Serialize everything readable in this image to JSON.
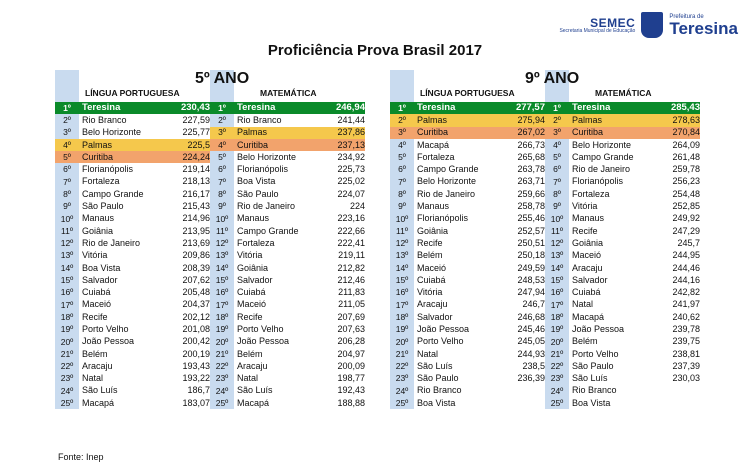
{
  "header": {
    "semec": "SEMEC",
    "semec_sub": "Secretaria Municipal de Educação",
    "pref_small": "Prefeitura de",
    "pref_big": "Teresina"
  },
  "title": "Proficiência Prova Brasil 2017",
  "sections": [
    {
      "grade": "5º ANO",
      "lp_label": "LÍNGUA PORTUGUESA",
      "mt_label": "MATEMÁTICA",
      "lp": [
        [
          "1º",
          "Teresina",
          "230,43",
          "green"
        ],
        [
          "2º",
          "Rio Branco",
          "227,59",
          ""
        ],
        [
          "3º",
          "Belo Horizonte",
          "225,77",
          ""
        ],
        [
          "4º",
          "Palmas",
          "225,5",
          "yellow"
        ],
        [
          "5º",
          "Curitiba",
          "224,24",
          "orange"
        ],
        [
          "6º",
          "Florianópolis",
          "219,14",
          ""
        ],
        [
          "7º",
          "Fortaleza",
          "218,13",
          ""
        ],
        [
          "8º",
          "Campo Grande",
          "216,17",
          ""
        ],
        [
          "9º",
          "São Paulo",
          "215,43",
          ""
        ],
        [
          "10º",
          "Manaus",
          "214,96",
          ""
        ],
        [
          "11º",
          "Goiânia",
          "213,95",
          ""
        ],
        [
          "12º",
          "Rio de Janeiro",
          "213,69",
          ""
        ],
        [
          "13º",
          "Vitória",
          "209,86",
          ""
        ],
        [
          "14º",
          "Boa Vista",
          "208,39",
          ""
        ],
        [
          "15º",
          "Salvador",
          "207,62",
          ""
        ],
        [
          "16º",
          "Cuiabá",
          "205,48",
          ""
        ],
        [
          "17º",
          "Maceió",
          "204,37",
          ""
        ],
        [
          "18º",
          "Recife",
          "202,12",
          ""
        ],
        [
          "19º",
          "Porto Velho",
          "201,08",
          ""
        ],
        [
          "20º",
          "João Pessoa",
          "200,42",
          ""
        ],
        [
          "21º",
          "Belém",
          "200,19",
          ""
        ],
        [
          "22º",
          "Aracaju",
          "193,43",
          ""
        ],
        [
          "23º",
          "Natal",
          "193,22",
          ""
        ],
        [
          "24º",
          "São Luís",
          "186,7",
          ""
        ],
        [
          "25º",
          "Macapá",
          "183,07",
          ""
        ]
      ],
      "mt": [
        [
          "1º",
          "Teresina",
          "246,94",
          "green"
        ],
        [
          "2º",
          "Rio Branco",
          "241,44",
          ""
        ],
        [
          "3º",
          "Palmas",
          "237,86",
          "yellow"
        ],
        [
          "4º",
          "Curitiba",
          "237,13",
          "orange"
        ],
        [
          "5º",
          "Belo Horizonte",
          "234,92",
          ""
        ],
        [
          "6º",
          "Florianópolis",
          "225,73",
          ""
        ],
        [
          "7º",
          "Boa Vista",
          "225,02",
          ""
        ],
        [
          "8º",
          "São Paulo",
          "224,07",
          ""
        ],
        [
          "9º",
          "Rio de Janeiro",
          "224",
          ""
        ],
        [
          "10º",
          "Manaus",
          "223,16",
          ""
        ],
        [
          "11º",
          "Campo Grande",
          "222,66",
          ""
        ],
        [
          "12º",
          "Fortaleza",
          "222,41",
          ""
        ],
        [
          "13º",
          "Vitória",
          "219,11",
          ""
        ],
        [
          "14º",
          "Goiânia",
          "212,82",
          ""
        ],
        [
          "15º",
          "Salvador",
          "212,46",
          ""
        ],
        [
          "16º",
          "Cuiabá",
          "211,83",
          ""
        ],
        [
          "17º",
          "Maceió",
          "211,05",
          ""
        ],
        [
          "18º",
          "Recife",
          "207,69",
          ""
        ],
        [
          "19º",
          "Porto Velho",
          "207,63",
          ""
        ],
        [
          "20º",
          "João Pessoa",
          "206,28",
          ""
        ],
        [
          "21º",
          "Belém",
          "204,97",
          ""
        ],
        [
          "22º",
          "Aracaju",
          "200,09",
          ""
        ],
        [
          "23º",
          "Natal",
          "198,77",
          ""
        ],
        [
          "24º",
          "São Luís",
          "192,43",
          ""
        ],
        [
          "25º",
          "Macapá",
          "188,88",
          ""
        ]
      ]
    },
    {
      "grade": "9º ANO",
      "lp_label": "LÍNGUA PORTUGUESA",
      "mt_label": "MATEMÁTICA",
      "lp": [
        [
          "1º",
          "Teresina",
          "277,57",
          "green"
        ],
        [
          "2º",
          "Palmas",
          "275,94",
          "yellow"
        ],
        [
          "3º",
          "Curitiba",
          "267,02",
          "orange"
        ],
        [
          "4º",
          "Macapá",
          "266,73",
          ""
        ],
        [
          "5º",
          "Fortaleza",
          "265,68",
          ""
        ],
        [
          "6º",
          "Campo Grande",
          "263,78",
          ""
        ],
        [
          "7º",
          "Belo Horizonte",
          "263,71",
          ""
        ],
        [
          "8º",
          "Rio de Janeiro",
          "259,66",
          ""
        ],
        [
          "9º",
          "Manaus",
          "258,78",
          ""
        ],
        [
          "10º",
          "Florianópolis",
          "255,46",
          ""
        ],
        [
          "11º",
          "Goiânia",
          "252,57",
          ""
        ],
        [
          "12º",
          "Recife",
          "250,51",
          ""
        ],
        [
          "13º",
          "Belém",
          "250,18",
          ""
        ],
        [
          "14º",
          "Maceió",
          "249,59",
          ""
        ],
        [
          "15º",
          "Cuiabá",
          "248,53",
          ""
        ],
        [
          "16º",
          "Vitória",
          "247,94",
          ""
        ],
        [
          "17º",
          "Aracaju",
          "246,7",
          ""
        ],
        [
          "18º",
          "Salvador",
          "246,68",
          ""
        ],
        [
          "19º",
          "João Pessoa",
          "245,46",
          ""
        ],
        [
          "20º",
          "Porto Velho",
          "245,05",
          ""
        ],
        [
          "21º",
          "Natal",
          "244,93",
          ""
        ],
        [
          "22º",
          "São Luís",
          "238,5",
          ""
        ],
        [
          "23º",
          "São Paulo",
          "236,39",
          ""
        ],
        [
          "24º",
          "Rio Branco",
          "",
          ""
        ],
        [
          "25º",
          "Boa Vista",
          "",
          ""
        ]
      ],
      "mt": [
        [
          "1º",
          "Teresina",
          "285,43",
          "green"
        ],
        [
          "2º",
          "Palmas",
          "278,63",
          "yellow"
        ],
        [
          "3º",
          "Curitiba",
          "270,84",
          "orange"
        ],
        [
          "4º",
          "Belo Horizonte",
          "264,09",
          ""
        ],
        [
          "5º",
          "Campo Grande",
          "261,48",
          ""
        ],
        [
          "6º",
          "Rio de Janeiro",
          "259,78",
          ""
        ],
        [
          "7º",
          "Florianópolis",
          "256,23",
          ""
        ],
        [
          "8º",
          "Fortaleza",
          "254,48",
          ""
        ],
        [
          "9º",
          "Vitória",
          "252,85",
          ""
        ],
        [
          "10º",
          "Manaus",
          "249,92",
          ""
        ],
        [
          "11º",
          "Recife",
          "247,29",
          ""
        ],
        [
          "12º",
          "Goiânia",
          "245,7",
          ""
        ],
        [
          "13º",
          "Maceió",
          "244,95",
          ""
        ],
        [
          "14º",
          "Aracaju",
          "244,46",
          ""
        ],
        [
          "15º",
          "Salvador",
          "244,16",
          ""
        ],
        [
          "16º",
          "Cuiabá",
          "242,82",
          ""
        ],
        [
          "17º",
          "Natal",
          "241,97",
          ""
        ],
        [
          "18º",
          "Macapá",
          "240,62",
          ""
        ],
        [
          "19º",
          "João Pessoa",
          "239,78",
          ""
        ],
        [
          "20º",
          "Belém",
          "239,75",
          ""
        ],
        [
          "21º",
          "Porto Velho",
          "238,81",
          ""
        ],
        [
          "22º",
          "São Paulo",
          "237,39",
          ""
        ],
        [
          "23º",
          "São Luís",
          "230,03",
          ""
        ],
        [
          "24º",
          "Rio Branco",
          "",
          ""
        ],
        [
          "25º",
          "Boa Vista",
          "",
          ""
        ]
      ]
    }
  ],
  "source": "Fonte: Inep",
  "colors": {
    "green": "#0a8a2a",
    "yellow": "#f5c84c",
    "orange": "#f2a36c",
    "rank_bg": "#c9dbef"
  }
}
